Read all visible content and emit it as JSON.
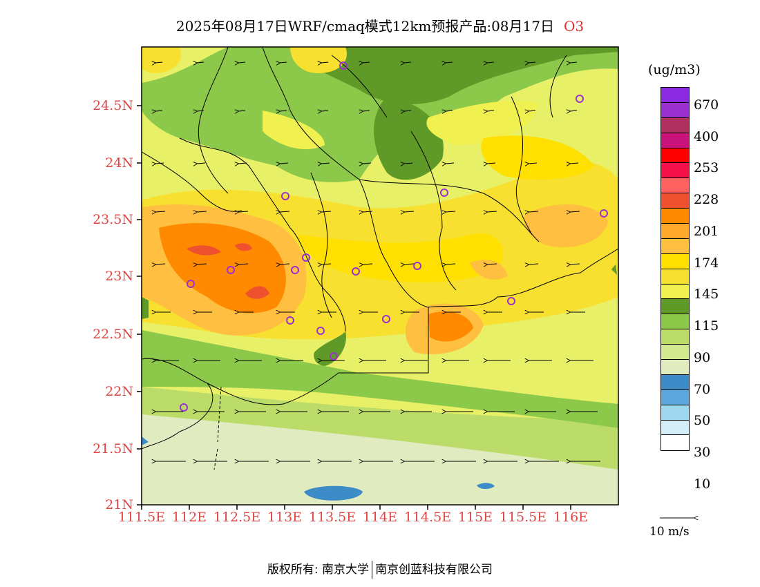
{
  "title": {
    "text": "2025年08月17日WRF/cmaq模式12km预报产品:08月17日",
    "species": "O3"
  },
  "axes": {
    "y_ticks": [
      "24.5N",
      "24N",
      "23.5N",
      "23N",
      "22.5N",
      "22N",
      "21.5N",
      "21N"
    ],
    "x_ticks": [
      "111.5E",
      "112E",
      "112.5E",
      "113E",
      "113.5E",
      "114E",
      "114.5E",
      "115E",
      "115.5E",
      "116E"
    ]
  },
  "legend": {
    "unit": "(ug/m3)",
    "colors": [
      "#8a2be2",
      "#9b30d0",
      "#b03060",
      "#c8147a",
      "#ff0000",
      "#f4104a",
      "#ff6060",
      "#ee5030",
      "#ff8a00",
      "#ffaa2a",
      "#ffbf40",
      "#ffe000",
      "#f8e030",
      "#f0f050",
      "#5f9a28",
      "#8cc84a",
      "#bcdc6a",
      "#d4e890",
      "#e0ecc0",
      "#3d8cc8",
      "#5ca8dc",
      "#a0d8f0",
      "#d4eef8",
      "#ffffff"
    ],
    "labels": [
      "670",
      "400",
      "253",
      "228",
      "201",
      "174",
      "145",
      "115",
      "90",
      "70",
      "50",
      "30",
      "10"
    ]
  },
  "wind_reference": "10 m/s",
  "footer": {
    "left": "版权所有: 南京大学",
    "right": "南京创蓝科技有限公司"
  }
}
